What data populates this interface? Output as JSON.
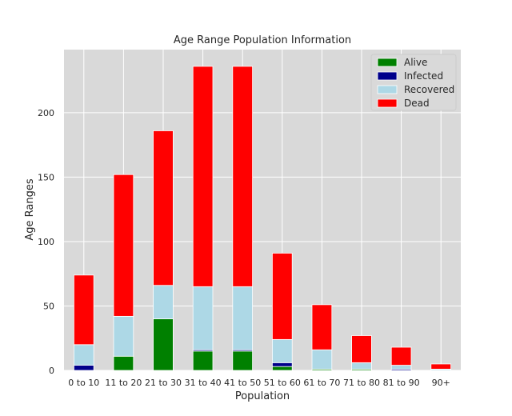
{
  "chart_data": {
    "type": "bar",
    "stacked": true,
    "title": "Age Range Population Information",
    "xlabel": "Population",
    "ylabel": "Age Ranges",
    "categories": [
      "0 to 10",
      "11 to 20",
      "21 to 30",
      "31 to 40",
      "41 to 50",
      "51 to 60",
      "61 to 70",
      "71 to 80",
      "81 to 90",
      "90+"
    ],
    "ylim": [
      0,
      249
    ],
    "yticks": [
      0,
      50,
      100,
      150,
      200
    ],
    "grid": true,
    "legend_position": "top-right",
    "series": [
      {
        "name": "Alive",
        "color": "#008000",
        "values": [
          0,
          11,
          40,
          15,
          15,
          3,
          1,
          1,
          0,
          0
        ]
      },
      {
        "name": "Infected",
        "color": "#00008b",
        "values": [
          4,
          0,
          0,
          1,
          1,
          3,
          0,
          0,
          1,
          0
        ]
      },
      {
        "name": "Recovered",
        "color": "#add8e6",
        "values": [
          16,
          31,
          26,
          49,
          49,
          18,
          15,
          5,
          3,
          1
        ]
      },
      {
        "name": "Dead",
        "color": "#ff0000",
        "values": [
          54,
          110,
          120,
          171,
          171,
          67,
          35,
          21,
          14,
          4
        ]
      }
    ]
  }
}
